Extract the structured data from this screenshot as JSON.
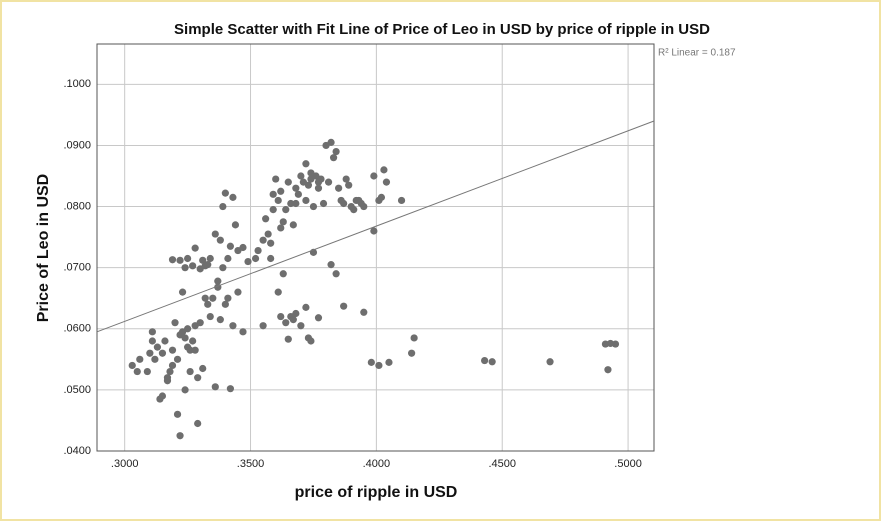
{
  "chart_data": {
    "type": "scatter",
    "title": "Simple Scatter with Fit Line of Price of Leo in USD by price of ripple in USD",
    "x_label": "price of ripple in USD",
    "y_label": "Price of Leo in USD",
    "annotation": "R² Linear = 0.187",
    "color": "#6e6e6e",
    "grid": true,
    "xlim": [
      0.289,
      0.5103
    ],
    "ylim": [
      0.04,
      0.1066
    ],
    "xticks": [
      {
        "value": 0.3,
        "label": ".3000"
      },
      {
        "value": 0.35,
        "label": ".3500"
      },
      {
        "value": 0.4,
        "label": ".4000"
      },
      {
        "value": 0.45,
        "label": ".4500"
      },
      {
        "value": 0.5,
        "label": ".5000"
      }
    ],
    "yticks": [
      {
        "value": 0.04,
        "label": ".0400"
      },
      {
        "value": 0.05,
        "label": ".0500"
      },
      {
        "value": 0.06,
        "label": ".0600"
      },
      {
        "value": 0.07,
        "label": ".0700"
      },
      {
        "value": 0.08,
        "label": ".0800"
      },
      {
        "value": 0.09,
        "label": ".0900"
      },
      {
        "value": 0.1,
        "label": ".1000"
      }
    ],
    "fit_line": {
      "x": [
        0.289,
        0.5103
      ],
      "y": [
        0.0595,
        0.094
      ]
    },
    "x": [
      0.303,
      0.305,
      0.306,
      0.309,
      0.31,
      0.311,
      0.311,
      0.312,
      0.313,
      0.314,
      0.315,
      0.315,
      0.316,
      0.317,
      0.318,
      0.319,
      0.32,
      0.321,
      0.321,
      0.322,
      0.322,
      0.323,
      0.324,
      0.325,
      0.325,
      0.326,
      0.327,
      0.328,
      0.329,
      0.329,
      0.33,
      0.331,
      0.332,
      0.334,
      0.336,
      0.338,
      0.34,
      0.341,
      0.342,
      0.343,
      0.345,
      0.347,
      0.324,
      0.326,
      0.323,
      0.328,
      0.319,
      0.317,
      0.319,
      0.322,
      0.324,
      0.325,
      0.327,
      0.328,
      0.33,
      0.331,
      0.332,
      0.333,
      0.334,
      0.336,
      0.337,
      0.338,
      0.339,
      0.34,
      0.341,
      0.342,
      0.343,
      0.344,
      0.345,
      0.347,
      0.349,
      0.337,
      0.339,
      0.335,
      0.333,
      0.352,
      0.353,
      0.355,
      0.356,
      0.357,
      0.358,
      0.359,
      0.36,
      0.361,
      0.362,
      0.363,
      0.364,
      0.365,
      0.366,
      0.367,
      0.368,
      0.369,
      0.37,
      0.371,
      0.372,
      0.373,
      0.374,
      0.375,
      0.376,
      0.377,
      0.378,
      0.379,
      0.38,
      0.381,
      0.382,
      0.383,
      0.384,
      0.385,
      0.386,
      0.387,
      0.388,
      0.389,
      0.39,
      0.391,
      0.392,
      0.393,
      0.394,
      0.395,
      0.372,
      0.374,
      0.377,
      0.368,
      0.362,
      0.359,
      0.355,
      0.358,
      0.361,
      0.362,
      0.363,
      0.364,
      0.365,
      0.366,
      0.367,
      0.368,
      0.37,
      0.372,
      0.373,
      0.374,
      0.375,
      0.377,
      0.382,
      0.384,
      0.387,
      0.395,
      0.398,
      0.401,
      0.405,
      0.414,
      0.415,
      0.443,
      0.446,
      0.469,
      0.491,
      0.492,
      0.493,
      0.495,
      0.399,
      0.399,
      0.403,
      0.404,
      0.41,
      0.401,
      0.402
    ],
    "y": [
      0.054,
      0.053,
      0.055,
      0.053,
      0.056,
      0.058,
      0.0595,
      0.055,
      0.057,
      0.0485,
      0.049,
      0.056,
      0.058,
      0.052,
      0.053,
      0.0565,
      0.061,
      0.046,
      0.055,
      0.0425,
      0.059,
      0.066,
      0.05,
      0.057,
      0.06,
      0.053,
      0.058,
      0.0605,
      0.052,
      0.0445,
      0.061,
      0.0535,
      0.065,
      0.062,
      0.0505,
      0.0615,
      0.064,
      0.065,
      0.0502,
      0.0605,
      0.066,
      0.0595,
      0.0585,
      0.0565,
      0.0595,
      0.0565,
      0.054,
      0.0515,
      0.0713,
      0.0712,
      0.07,
      0.0715,
      0.0703,
      0.0732,
      0.0698,
      0.0712,
      0.0703,
      0.0705,
      0.0715,
      0.0755,
      0.0678,
      0.0745,
      0.08,
      0.0822,
      0.0715,
      0.0735,
      0.0815,
      0.077,
      0.0728,
      0.0733,
      0.071,
      0.0668,
      0.07,
      0.065,
      0.064,
      0.0715,
      0.0728,
      0.0745,
      0.078,
      0.0755,
      0.074,
      0.082,
      0.0845,
      0.081,
      0.0825,
      0.0775,
      0.0795,
      0.084,
      0.0805,
      0.077,
      0.083,
      0.082,
      0.085,
      0.084,
      0.081,
      0.0835,
      0.0845,
      0.08,
      0.085,
      0.083,
      0.0845,
      0.0805,
      0.09,
      0.084,
      0.0905,
      0.088,
      0.089,
      0.083,
      0.081,
      0.0805,
      0.0845,
      0.0835,
      0.08,
      0.0795,
      0.081,
      0.081,
      0.0805,
      0.08,
      0.087,
      0.0855,
      0.084,
      0.0805,
      0.0765,
      0.0795,
      0.0605,
      0.0715,
      0.066,
      0.062,
      0.069,
      0.061,
      0.0583,
      0.062,
      0.0615,
      0.0625,
      0.0605,
      0.0635,
      0.0585,
      0.058,
      0.0725,
      0.0618,
      0.0705,
      0.069,
      0.0637,
      0.0627,
      0.0545,
      0.054,
      0.0545,
      0.056,
      0.0585,
      0.0548,
      0.0546,
      0.0546,
      0.0575,
      0.0533,
      0.0576,
      0.0575,
      0.076,
      0.085,
      0.086,
      0.084,
      0.081,
      0.081,
      0.0815
    ]
  }
}
